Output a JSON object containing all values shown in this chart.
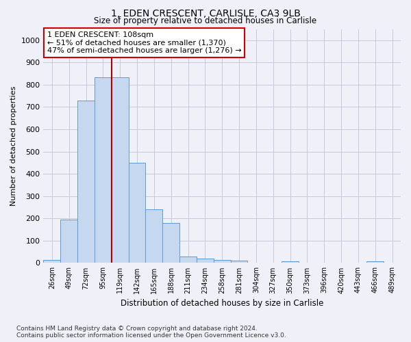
{
  "title1": "1, EDEN CRESCENT, CARLISLE, CA3 9LB",
  "title2": "Size of property relative to detached houses in Carlisle",
  "xlabel": "Distribution of detached houses by size in Carlisle",
  "ylabel": "Number of detached properties",
  "categories": [
    "26sqm",
    "49sqm",
    "72sqm",
    "95sqm",
    "119sqm",
    "142sqm",
    "165sqm",
    "188sqm",
    "211sqm",
    "234sqm",
    "258sqm",
    "281sqm",
    "304sqm",
    "327sqm",
    "350sqm",
    "373sqm",
    "396sqm",
    "420sqm",
    "443sqm",
    "466sqm",
    "489sqm"
  ],
  "values": [
    15,
    195,
    730,
    835,
    835,
    450,
    240,
    180,
    30,
    20,
    15,
    10,
    0,
    0,
    8,
    0,
    0,
    0,
    0,
    8,
    0
  ],
  "bar_color": "#c5d8ef",
  "bar_edge_color": "#5b9bd5",
  "vline_color": "#aa0000",
  "annotation_text": "1 EDEN CRESCENT: 108sqm\n← 51% of detached houses are smaller (1,370)\n47% of semi-detached houses are larger (1,276) →",
  "annotation_box_color": "#ffffff",
  "annotation_box_edge": "#cc0000",
  "ylim": [
    0,
    1050
  ],
  "yticks": [
    0,
    100,
    200,
    300,
    400,
    500,
    600,
    700,
    800,
    900,
    1000
  ],
  "footnote": "Contains HM Land Registry data © Crown copyright and database right 2024.\nContains public sector information licensed under the Open Government Licence v3.0.",
  "background_color": "#f0f0f8",
  "grid_color": "#c8c8dc"
}
